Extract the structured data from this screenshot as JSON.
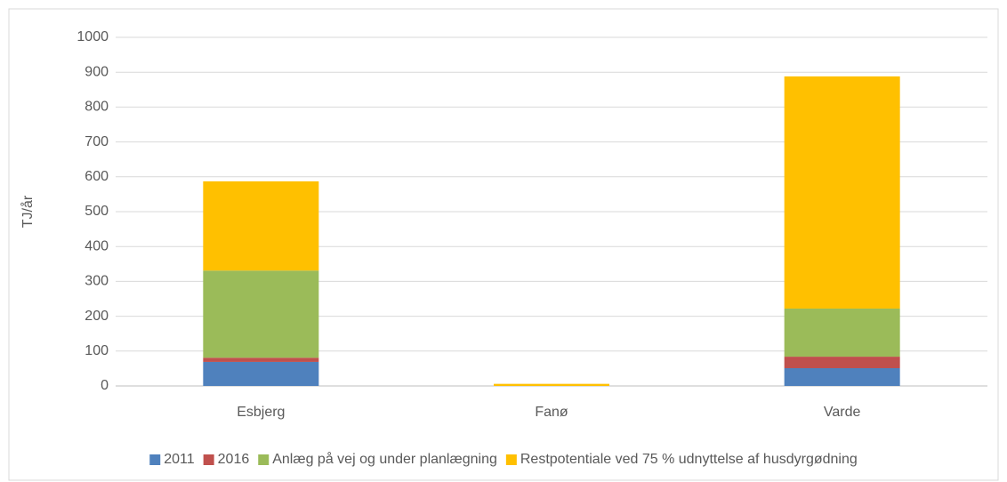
{
  "chart_data": {
    "type": "stacked_bar",
    "y_label": "TJ/år",
    "categories": [
      "Esbjerg",
      "Fanø",
      "Varde"
    ],
    "series": [
      {
        "name": "2011",
        "color": "#4f81bd",
        "values": [
          69,
          0,
          51
        ]
      },
      {
        "name": "2016",
        "color": "#c0504d",
        "values": [
          12,
          0,
          33
        ]
      },
      {
        "name": "Anlæg på vej og under planlægning",
        "color": "#9bbb59",
        "values": [
          250,
          0,
          138
        ]
      },
      {
        "name": "Restpotentiale ved 75 % udnyttelse af husdyrgødning",
        "color": "#ffc000",
        "values": [
          256,
          6,
          666
        ]
      }
    ],
    "ylim": [
      0,
      1000
    ],
    "yticks": [
      0,
      100,
      200,
      300,
      400,
      500,
      600,
      700,
      800,
      900,
      1000
    ],
    "grid": true,
    "legend": "bottom"
  }
}
